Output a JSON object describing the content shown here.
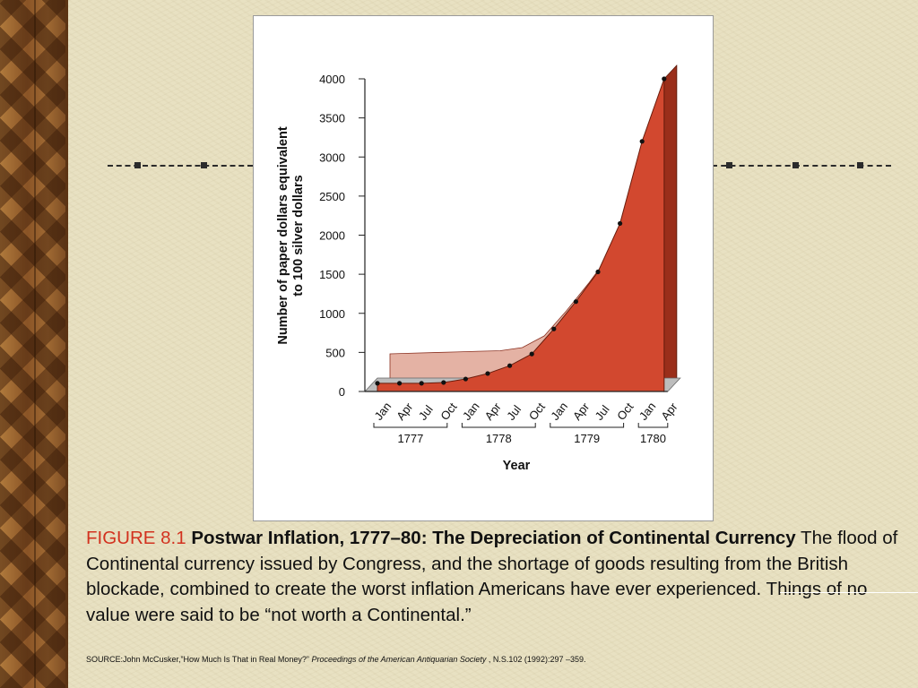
{
  "caption": {
    "figure_label": "FIGURE 8.1",
    "title": "Postwar Inflation, 1777–80: The Depreciation of Continental Currency",
    "body": "The flood of Continental currency issued by Congress, and the shortage of goods resulting from the British blockade, combined to create the worst inflation Americans have ever experienced. Things of no value were said to be “not worth a Continental.”"
  },
  "source": {
    "prefix": "SOURCE:John McCusker,”How Much Is That in Real Money?”",
    "journal": "Proceedings of the American Antiquarian Society",
    "suffix": ", N.S.102 (1992):297 –359."
  },
  "colors": {
    "area_fill": "#d2482f",
    "area_side": "#9a2e1a",
    "back_fill": "#e4b2a4",
    "background": "#e8e1c2",
    "figure_label": "#d2311e"
  },
  "chart_data": {
    "type": "area",
    "title": "",
    "xlabel": "Year",
    "ylabel": "Number of paper dollars equivalent to 100 silver dollars",
    "ylim": [
      0,
      4000
    ],
    "yticks": [
      "0",
      "500",
      "1000",
      "1500",
      "2000",
      "2500",
      "3000",
      "3500",
      "4000"
    ],
    "x": [
      "Jan",
      "Apr",
      "Jul",
      "Oct",
      "Jan",
      "Apr",
      "Jul",
      "Oct",
      "Jan",
      "Apr",
      "Jul",
      "Oct",
      "Jan",
      "Apr"
    ],
    "years": [
      {
        "label": "1777",
        "from": 0,
        "to": 3
      },
      {
        "label": "1778",
        "from": 4,
        "to": 7
      },
      {
        "label": "1779",
        "from": 8,
        "to": 11
      },
      {
        "label": "1780",
        "from": 12,
        "to": 13
      }
    ],
    "series": [
      {
        "values": [
          105,
          105,
          105,
          115,
          160,
          230,
          330,
          480,
          800,
          1150,
          1530,
          2150,
          3200,
          4000
        ]
      }
    ],
    "grid": false,
    "legend": "none"
  }
}
